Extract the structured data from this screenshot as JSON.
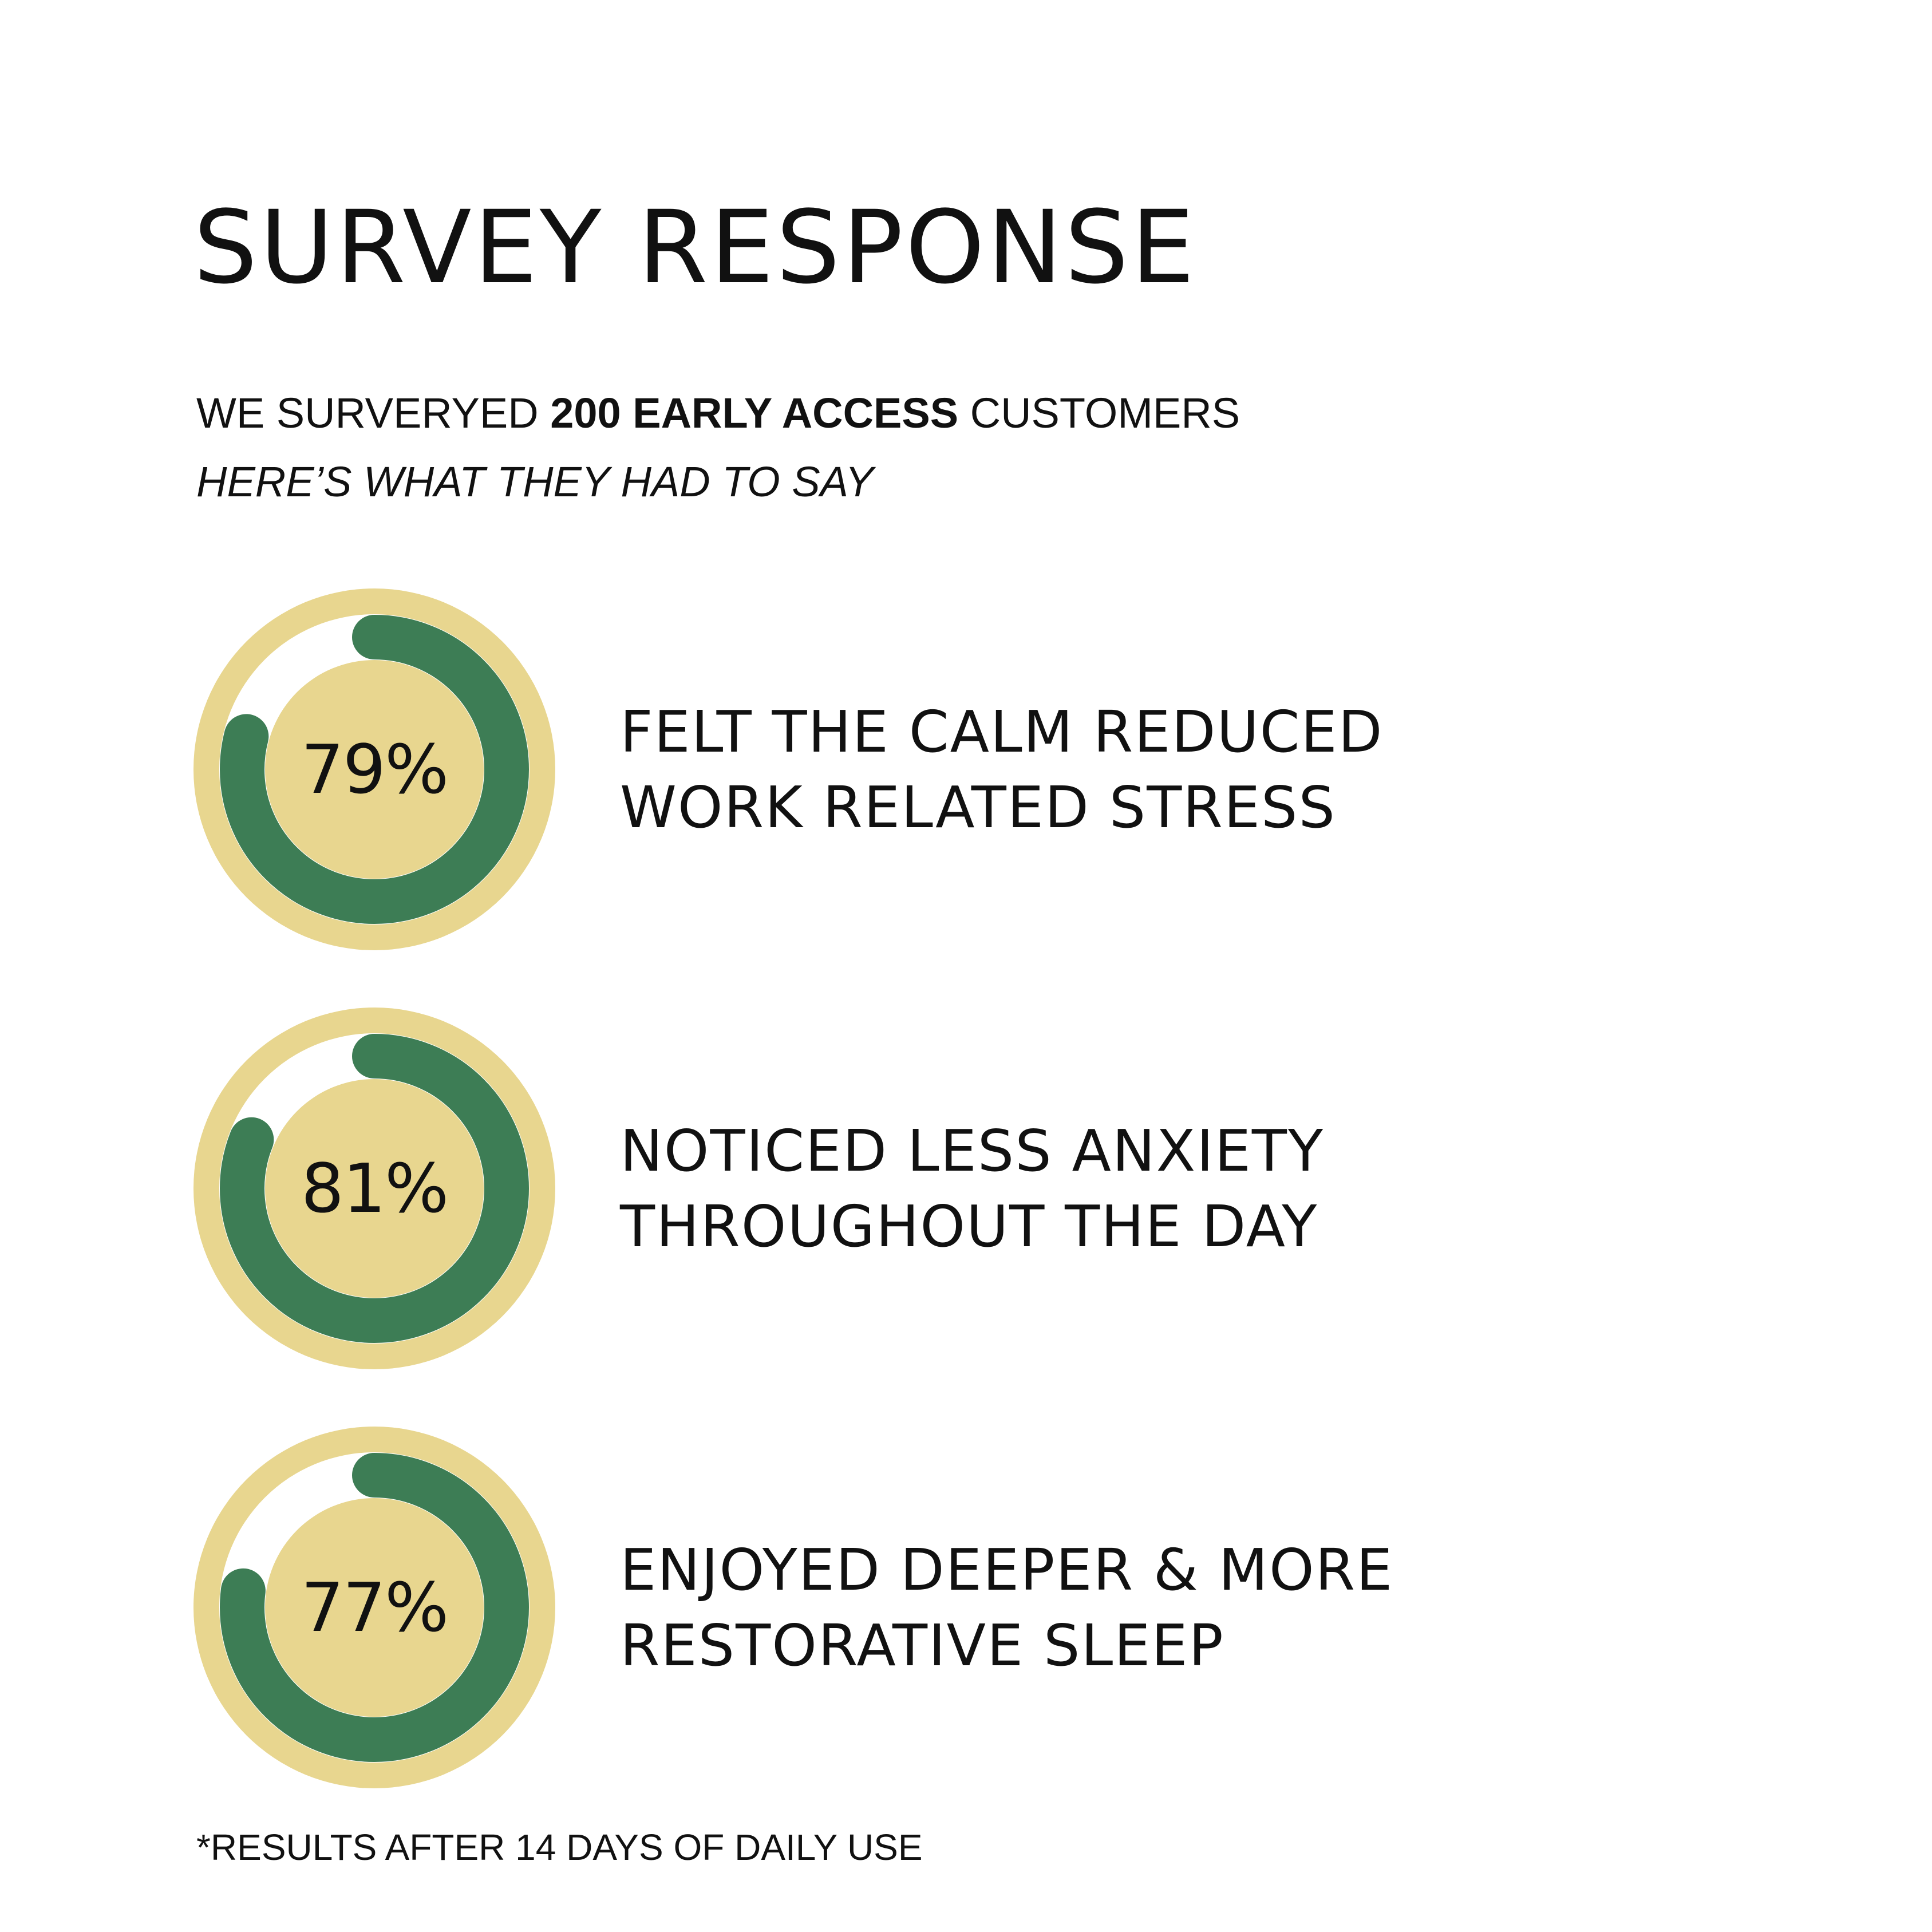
{
  "title": "SURVEY RESPONSE",
  "intro": {
    "prefix": "WE SURVERYED ",
    "highlight": "200 EARLY ACCESS",
    "suffix": " CUSTOMERS",
    "line2": "HERE’S WHAT THEY HAD TO SAY"
  },
  "colors": {
    "ring_outer": "#e8d68f",
    "ring_track": "#ffffff",
    "progress": "#3d7d55",
    "text": "#111111"
  },
  "stats": [
    {
      "value_text": "79%",
      "value": 79,
      "line1": "FELT THE CALM REDUCED",
      "line2": "WORK RELATED STRESS"
    },
    {
      "value_text": "81%",
      "value": 81,
      "line1": "NOTICED LESS ANXIETY",
      "line2": "THROUGHOUT THE DAY"
    },
    {
      "value_text": "77%",
      "value": 77,
      "line1": "ENJOYED DEEPER & MORE",
      "line2": "RESTORATIVE SLEEP"
    }
  ],
  "footnote": "*RESULTS AFTER 14 DAYS OF DAILY USE"
}
